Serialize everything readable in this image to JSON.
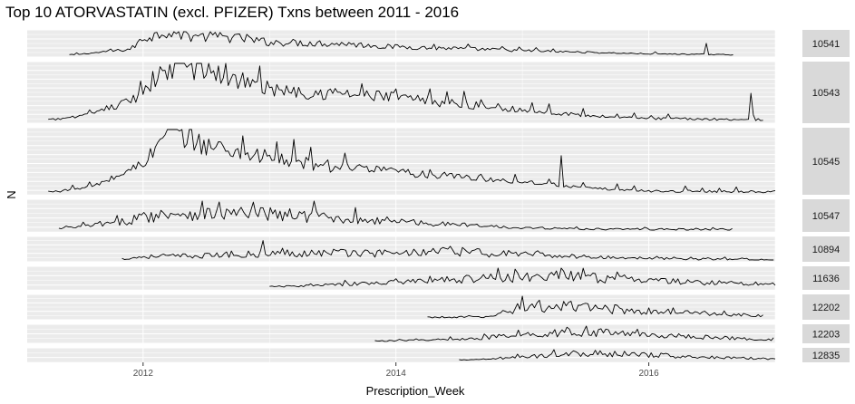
{
  "chart_data": {
    "type": "line",
    "layout": "faceted",
    "title": "Top 10 ATORVASTATIN (excl. PFIZER) Txns between 2011 - 2016",
    "xlabel": "Prescription_Week",
    "ylabel": "N",
    "x_ticks": [
      "2012",
      "2014",
      "2016"
    ],
    "x_range": [
      "2011-02",
      "2017-01"
    ],
    "grid": true,
    "legend": "none",
    "line_color": "#000000",
    "panel_background": "#ebebeb",
    "strip_background": "#d9d9d9",
    "facet_scale_y": "free",
    "facets": [
      {
        "label": "10541",
        "start": "2011-06",
        "end": "2016-09",
        "anchors": [
          [
            2011.45,
            0.02
          ],
          [
            2011.9,
            0.25
          ],
          [
            2012.0,
            0.7
          ],
          [
            2012.2,
            1.0
          ],
          [
            2012.4,
            0.8
          ],
          [
            2012.7,
            0.75
          ],
          [
            2013.0,
            0.55
          ],
          [
            2013.5,
            0.5
          ],
          [
            2014.0,
            0.35
          ],
          [
            2014.5,
            0.28
          ],
          [
            2015.0,
            0.2
          ],
          [
            2015.5,
            0.12
          ],
          [
            2016.0,
            0.06
          ],
          [
            2016.7,
            0.02
          ]
        ],
        "noise": 0.3,
        "spike_at": 2016.45
      },
      {
        "label": "10543",
        "start": "2011-04",
        "end": "2016-12",
        "anchors": [
          [
            2011.3,
            0.03
          ],
          [
            2011.6,
            0.12
          ],
          [
            2011.9,
            0.35
          ],
          [
            2012.1,
            0.75
          ],
          [
            2012.35,
            1.0
          ],
          [
            2012.6,
            0.8
          ],
          [
            2013.0,
            0.55
          ],
          [
            2013.4,
            0.5
          ],
          [
            2014.0,
            0.4
          ],
          [
            2014.5,
            0.3
          ],
          [
            2015.0,
            0.2
          ],
          [
            2015.5,
            0.1
          ],
          [
            2016.0,
            0.05
          ],
          [
            2016.95,
            0.03
          ]
        ],
        "noise": 0.25,
        "spike_at": 2016.8
      },
      {
        "label": "10545",
        "start": "2011-04",
        "end": "2017-01",
        "anchors": [
          [
            2011.3,
            0.02
          ],
          [
            2011.6,
            0.1
          ],
          [
            2011.9,
            0.35
          ],
          [
            2012.1,
            0.65
          ],
          [
            2012.2,
            1.0
          ],
          [
            2012.5,
            0.75
          ],
          [
            2013.0,
            0.55
          ],
          [
            2013.5,
            0.4
          ],
          [
            2014.0,
            0.33
          ],
          [
            2014.5,
            0.25
          ],
          [
            2015.0,
            0.18
          ],
          [
            2015.5,
            0.08
          ],
          [
            2016.0,
            0.03
          ],
          [
            2017.0,
            0.02
          ]
        ],
        "noise": 0.22,
        "spike_at": 2015.3
      },
      {
        "label": "10547",
        "start": "2011-05",
        "end": "2016-09",
        "anchors": [
          [
            2011.35,
            0.05
          ],
          [
            2011.8,
            0.25
          ],
          [
            2012.0,
            0.45
          ],
          [
            2012.3,
            0.6
          ],
          [
            2012.7,
            0.55
          ],
          [
            2013.0,
            0.55
          ],
          [
            2013.4,
            0.45
          ],
          [
            2014.0,
            0.3
          ],
          [
            2014.5,
            0.18
          ],
          [
            2015.0,
            0.08
          ],
          [
            2015.5,
            0.04
          ],
          [
            2016.0,
            0.03
          ],
          [
            2016.75,
            0.02
          ]
        ],
        "noise": 0.45,
        "spike_at": 2013.35
      },
      {
        "label": "10894",
        "start": "2011-11",
        "end": "2017-01",
        "anchors": [
          [
            2011.85,
            0.05
          ],
          [
            2012.0,
            0.15
          ],
          [
            2012.5,
            0.2
          ],
          [
            2013.0,
            0.3
          ],
          [
            2013.5,
            0.35
          ],
          [
            2014.0,
            0.3
          ],
          [
            2014.4,
            0.4
          ],
          [
            2014.8,
            0.3
          ],
          [
            2015.3,
            0.18
          ],
          [
            2015.8,
            0.1
          ],
          [
            2016.3,
            0.05
          ],
          [
            2017.0,
            0.02
          ]
        ],
        "noise": 0.6,
        "spike_at": 2012.95
      },
      {
        "label": "11636",
        "start": "2013-01",
        "end": "2017-01",
        "anchors": [
          [
            2012.95,
            0.05
          ],
          [
            2013.5,
            0.15
          ],
          [
            2014.0,
            0.3
          ],
          [
            2014.5,
            0.45
          ],
          [
            2015.0,
            0.55
          ],
          [
            2015.3,
            0.6
          ],
          [
            2015.8,
            0.45
          ],
          [
            2016.3,
            0.3
          ],
          [
            2017.0,
            0.2
          ]
        ],
        "noise": 0.5,
        "spike_at": 2015.3
      },
      {
        "label": "12202",
        "start": "2014-04",
        "end": "2016-12",
        "anchors": [
          [
            2014.25,
            0.02
          ],
          [
            2014.75,
            0.05
          ],
          [
            2015.0,
            0.55
          ],
          [
            2015.3,
            0.5
          ],
          [
            2015.6,
            0.45
          ],
          [
            2016.0,
            0.3
          ],
          [
            2016.5,
            0.2
          ],
          [
            2016.95,
            0.1
          ]
        ],
        "noise": 0.55,
        "spike_at": 2015.0
      },
      {
        "label": "12203",
        "start": "2013-11",
        "end": "2017-01",
        "anchors": [
          [
            2013.85,
            0.03
          ],
          [
            2014.5,
            0.15
          ],
          [
            2015.0,
            0.4
          ],
          [
            2015.35,
            0.6
          ],
          [
            2015.7,
            0.55
          ],
          [
            2016.2,
            0.35
          ],
          [
            2016.7,
            0.2
          ],
          [
            2017.0,
            0.1
          ]
        ],
        "noise": 0.5,
        "spike_at": 2015.35
      },
      {
        "label": "12835",
        "start": "2014-07",
        "end": "2017-01",
        "anchors": [
          [
            2014.6,
            0.05
          ],
          [
            2015.0,
            0.3
          ],
          [
            2015.3,
            0.6
          ],
          [
            2015.6,
            0.65
          ],
          [
            2016.0,
            0.5
          ],
          [
            2016.5,
            0.3
          ],
          [
            2017.0,
            0.15
          ]
        ],
        "noise": 0.5,
        "spike_at": 2015.25
      }
    ]
  }
}
